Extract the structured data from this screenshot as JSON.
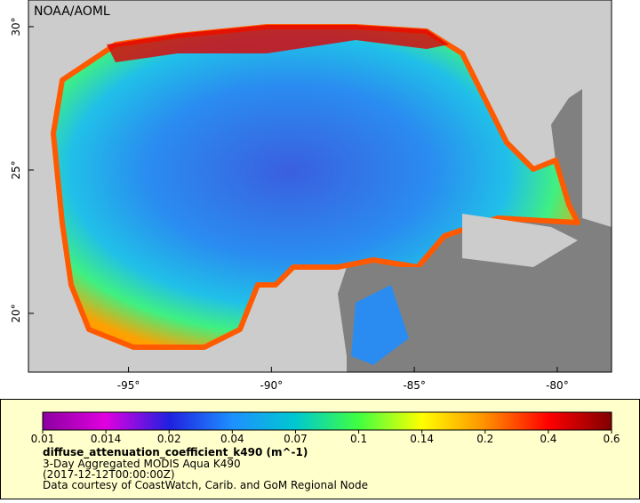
{
  "map": {
    "title": "NOAA/AOML",
    "lonlim": [
      -98.5,
      -78.1
    ],
    "latlim": [
      17.95,
      30.93
    ],
    "xticks": [
      {
        "value": -95,
        "label": "-95°"
      },
      {
        "value": -90,
        "label": "-90°"
      },
      {
        "value": -85,
        "label": "-85°"
      },
      {
        "value": -80,
        "label": "-80°"
      }
    ],
    "yticks": [
      {
        "value": 20,
        "label": "20°"
      },
      {
        "value": 25,
        "label": "25°"
      },
      {
        "value": 30,
        "label": "30°"
      }
    ]
  },
  "colorbar": {
    "labels": [
      "0.01",
      "0.014",
      "0.02",
      "0.04",
      "0.07",
      "0.1",
      "0.14",
      "0.2",
      "0.4",
      "0.6"
    ],
    "colors": [
      "#8b00a0",
      "#e000e0",
      "#2020e0",
      "#1e90ff",
      "#00c8d0",
      "#40ff40",
      "#ffff00",
      "#ff9000",
      "#ff0000",
      "#800000"
    ]
  },
  "legend": {
    "variable": "diffuse_attenuation_coefficient_k490 (m^-1)",
    "dataset": "3-Day Aggregated MODIS Aqua K490",
    "time": "(2017-12-12T00:00:00Z)",
    "credit": "Data courtesy of CoastWatch, Carib. and GoM Regional Node"
  }
}
